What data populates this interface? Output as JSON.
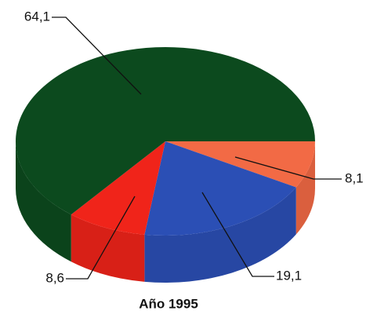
{
  "chart_data": {
    "type": "pie",
    "title": "Año 1995",
    "categories": [
      null,
      null,
      null,
      null
    ],
    "values": [
      8.1,
      19.1,
      8.6,
      64.1
    ],
    "value_labels": [
      "8,1",
      "19,1",
      "8,6",
      "64,1"
    ],
    "colors": [
      "#f26a45",
      "#2b4fb5",
      "#f0241a",
      "#0c4a1e"
    ]
  }
}
